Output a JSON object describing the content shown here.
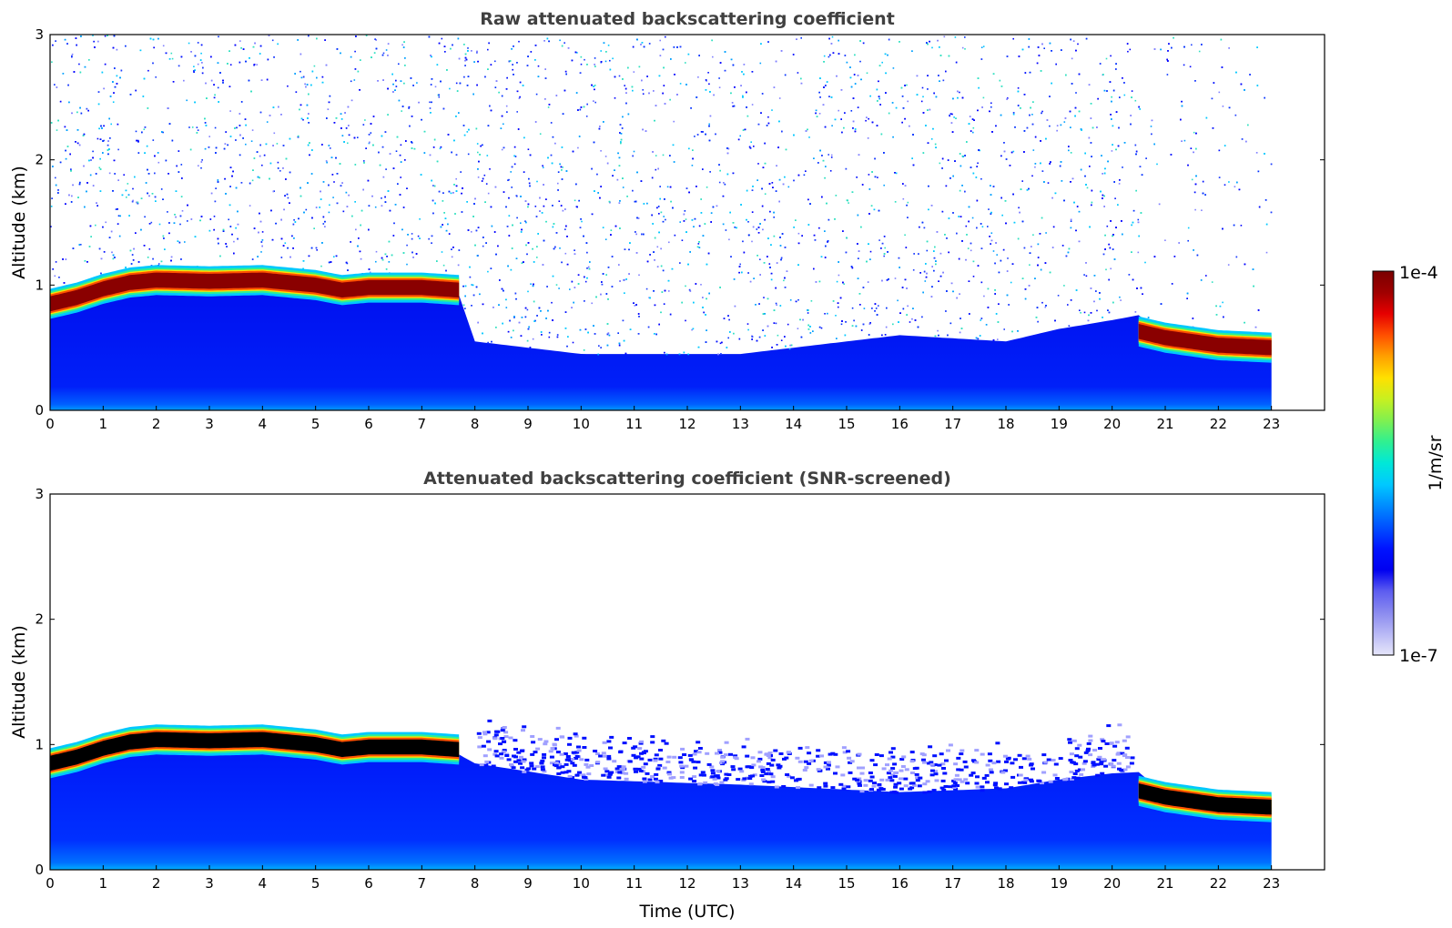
{
  "figure": {
    "colorbar": {
      "label": "1/m/sr",
      "top_label": "1e-4",
      "bottom_label": "1e-7",
      "range": [
        1e-07,
        0.0001
      ],
      "colors": [
        "#e6e6fa",
        "#b8b8f5",
        "#8a8aef",
        "#5c5cf0",
        "#0000f0",
        "#0014ff",
        "#0050ff",
        "#008cff",
        "#00c8ff",
        "#00e8d8",
        "#30f090",
        "#80f050",
        "#c8f020",
        "#ffe000",
        "#ffa000",
        "#ff5000",
        "#e60000",
        "#a00000",
        "#7a0000"
      ]
    }
  },
  "chart_data": [
    {
      "type": "heatmap",
      "title": "Raw attenuated backscattering coefficient",
      "xlabel": "",
      "ylabel": "Altitude (km)",
      "xlim": [
        0,
        24
      ],
      "ylim": [
        0,
        3
      ],
      "xticks": [
        "0",
        "1",
        "2",
        "3",
        "4",
        "5",
        "6",
        "7",
        "8",
        "9",
        "10",
        "11",
        "12",
        "13",
        "14",
        "15",
        "16",
        "17",
        "18",
        "19",
        "20",
        "21",
        "22",
        "23"
      ],
      "yticks": [
        "0",
        "1",
        "2",
        "3"
      ],
      "data_end_time": 23,
      "cloud_layer": {
        "time": [
          0,
          0.5,
          1,
          1.5,
          2,
          3,
          4,
          4.5,
          5,
          5.5,
          6,
          7,
          7.7,
          20.5,
          21,
          22,
          23
        ],
        "altitude_km": [
          0.85,
          0.9,
          0.97,
          1.02,
          1.04,
          1.03,
          1.04,
          1.02,
          1.0,
          0.96,
          0.98,
          0.98,
          0.96,
          0.63,
          0.58,
          0.52,
          0.5
        ],
        "present": [
          true,
          true,
          true,
          true,
          true,
          true,
          true,
          true,
          true,
          true,
          true,
          true,
          true,
          true,
          true,
          true,
          true
        ]
      },
      "boundary_layer_top_km": {
        "time": [
          0,
          2,
          5,
          7.7,
          8,
          10,
          13,
          16,
          18,
          19,
          20,
          20.5,
          21,
          23
        ],
        "value": [
          0.8,
          0.95,
          0.92,
          0.92,
          0.55,
          0.45,
          0.45,
          0.6,
          0.55,
          0.65,
          0.72,
          0.76,
          0.58,
          0.48
        ]
      }
    },
    {
      "type": "heatmap",
      "title": "Attenuated backscattering coefficient (SNR-screened)",
      "xlabel": "Time (UTC)",
      "ylabel": "Altitude (km)",
      "xlim": [
        0,
        24
      ],
      "ylim": [
        0,
        3
      ],
      "xticks": [
        "0",
        "1",
        "2",
        "3",
        "4",
        "5",
        "6",
        "7",
        "8",
        "9",
        "10",
        "11",
        "12",
        "13",
        "14",
        "15",
        "16",
        "17",
        "18",
        "19",
        "20",
        "21",
        "22",
        "23"
      ],
      "yticks": [
        "0",
        "1",
        "2",
        "3"
      ],
      "data_end_time": 23,
      "cloud_layer": {
        "time": [
          0,
          0.5,
          1,
          1.5,
          2,
          3,
          4,
          4.5,
          5,
          5.5,
          6,
          7,
          7.7,
          20.5,
          21,
          22,
          23
        ],
        "altitude_km": [
          0.85,
          0.9,
          0.97,
          1.02,
          1.04,
          1.03,
          1.04,
          1.02,
          1.0,
          0.96,
          0.98,
          0.98,
          0.96,
          0.63,
          0.58,
          0.52,
          0.5
        ],
        "present": [
          true,
          true,
          true,
          true,
          true,
          true,
          true,
          true,
          true,
          true,
          true,
          true,
          true,
          true,
          true,
          true,
          true
        ]
      },
      "boundary_layer_top_km": {
        "time": [
          0,
          2,
          5,
          7.7,
          8,
          10,
          13,
          16,
          18,
          19,
          20,
          20.5,
          21,
          23
        ],
        "value": [
          0.8,
          0.95,
          0.92,
          0.92,
          0.85,
          0.72,
          0.68,
          0.62,
          0.65,
          0.72,
          0.77,
          0.78,
          0.6,
          0.5
        ]
      }
    }
  ]
}
